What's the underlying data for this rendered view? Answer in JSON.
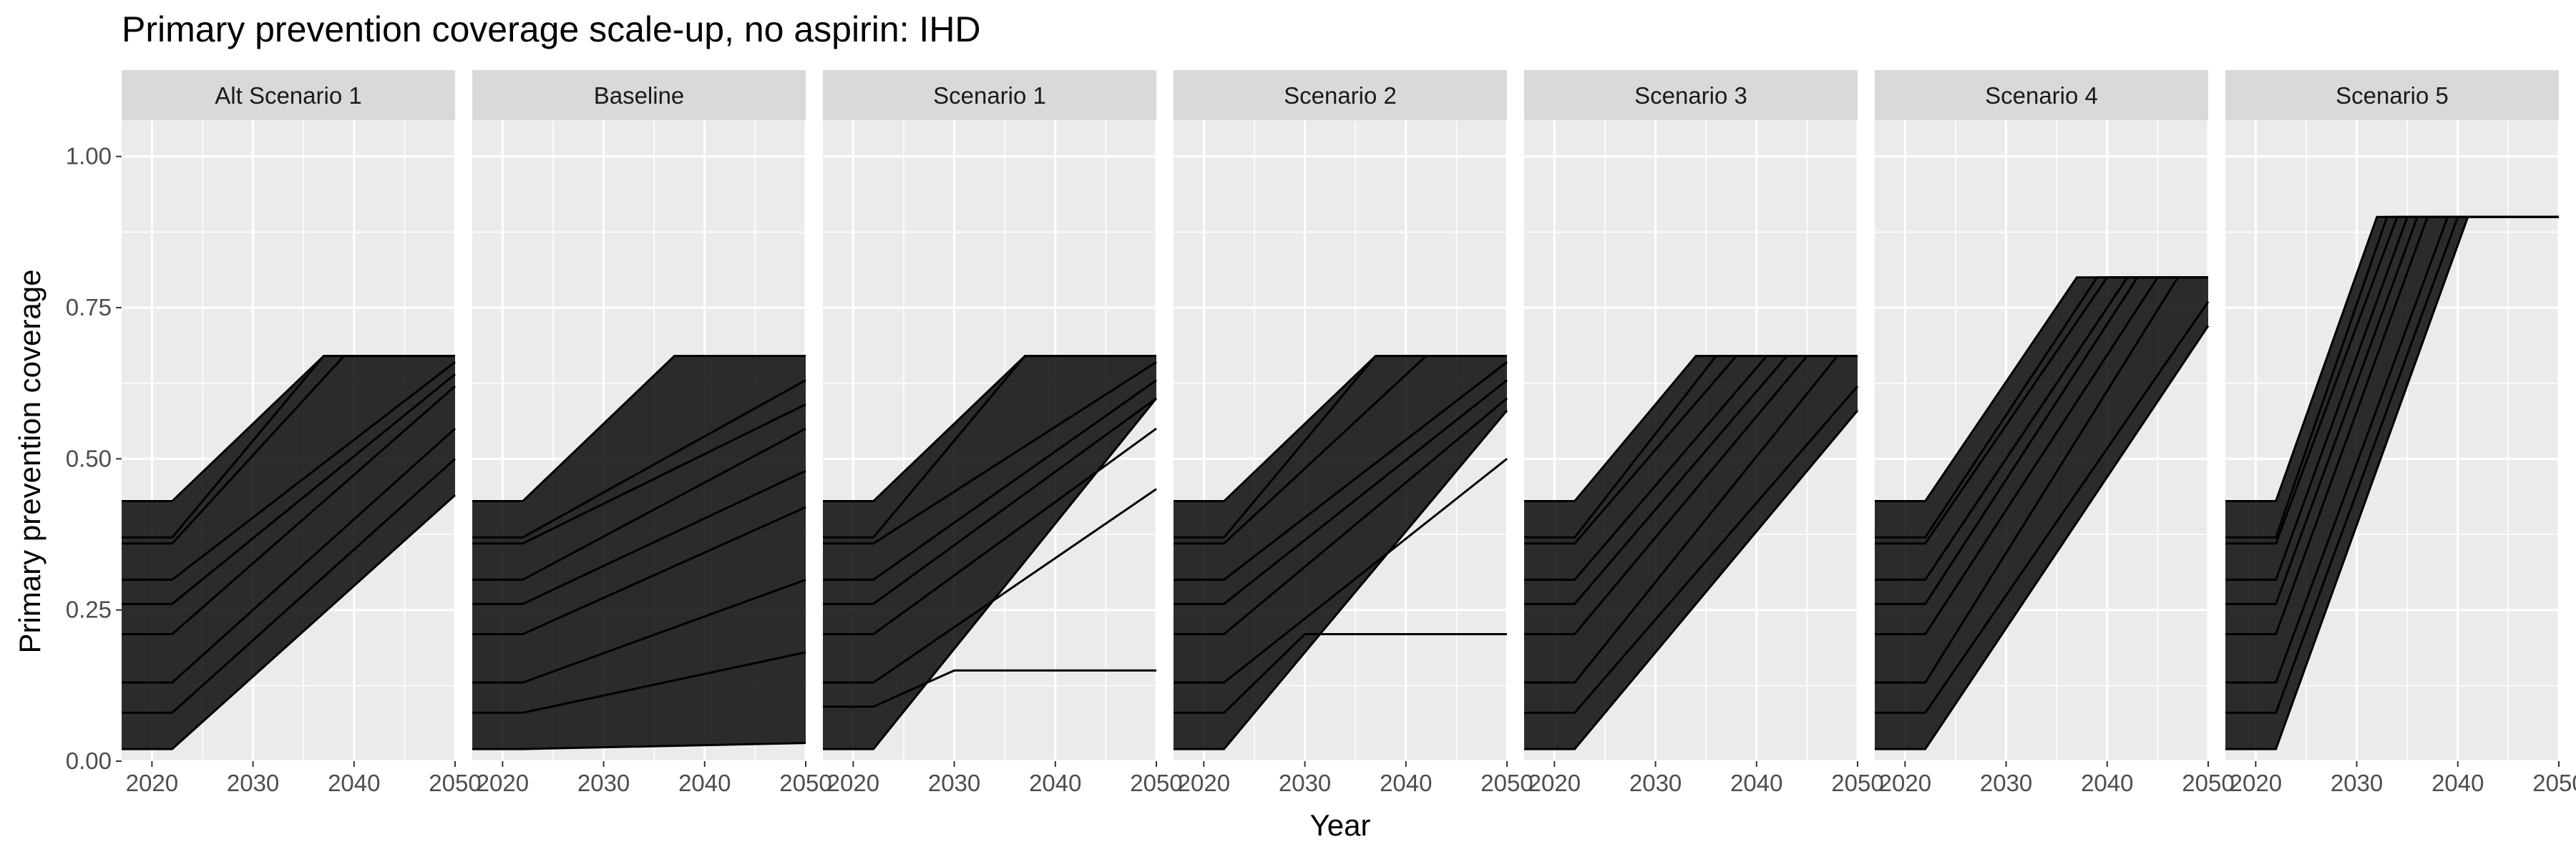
{
  "chart_data": {
    "type": "line",
    "title": "Primary prevention coverage scale-up, no aspirin: IHD",
    "xlabel": "Year",
    "ylabel": "Primary prevention coverage",
    "xlim": [
      2017,
      2050
    ],
    "ylim": [
      0,
      1.06
    ],
    "x_ticks": [
      2020,
      2030,
      2040,
      2050
    ],
    "x_tick_labels": [
      "2020",
      "2030",
      "2040",
      "2050"
    ],
    "y_ticks": [
      0,
      0.25,
      0.5,
      0.75,
      1.0
    ],
    "y_tick_labels": [
      "0.00",
      "0.25",
      "0.50",
      "0.75",
      "1.00"
    ],
    "grid": true,
    "legend": "none",
    "colors": {
      "panel_bg": "#ebebeb",
      "strip_bg": "#d9d9d9",
      "grid": "#ffffff",
      "line": "#000000"
    },
    "panels": [
      {
        "label": "Alt Scenario 1",
        "series": [
          {
            "x": [
              2017,
              2022,
              2037,
              2050
            ],
            "y": [
              0.43,
              0.43,
              0.67,
              0.67
            ]
          },
          {
            "x": [
              2017,
              2022,
              2037,
              2050
            ],
            "y": [
              0.37,
              0.37,
              0.67,
              0.67
            ]
          },
          {
            "x": [
              2017,
              2022,
              2039,
              2050
            ],
            "y": [
              0.36,
              0.36,
              0.67,
              0.67
            ]
          },
          {
            "x": [
              2017,
              2022,
              2050
            ],
            "y": [
              0.3,
              0.3,
              0.66
            ]
          },
          {
            "x": [
              2017,
              2022,
              2050
            ],
            "y": [
              0.26,
              0.26,
              0.64
            ]
          },
          {
            "x": [
              2017,
              2022,
              2050
            ],
            "y": [
              0.21,
              0.21,
              0.62
            ]
          },
          {
            "x": [
              2017,
              2022,
              2050
            ],
            "y": [
              0.13,
              0.13,
              0.55
            ]
          },
          {
            "x": [
              2017,
              2022,
              2050
            ],
            "y": [
              0.08,
              0.08,
              0.5
            ]
          },
          {
            "x": [
              2017,
              2022,
              2050
            ],
            "y": [
              0.02,
              0.02,
              0.44
            ]
          }
        ]
      },
      {
        "label": "Baseline",
        "series": [
          {
            "x": [
              2017,
              2022,
              2037,
              2050
            ],
            "y": [
              0.43,
              0.43,
              0.67,
              0.67
            ]
          },
          {
            "x": [
              2017,
              2022,
              2050
            ],
            "y": [
              0.37,
              0.37,
              0.63
            ]
          },
          {
            "x": [
              2017,
              2022,
              2050
            ],
            "y": [
              0.36,
              0.36,
              0.59
            ]
          },
          {
            "x": [
              2017,
              2022,
              2050
            ],
            "y": [
              0.3,
              0.3,
              0.55
            ]
          },
          {
            "x": [
              2017,
              2022,
              2050
            ],
            "y": [
              0.26,
              0.26,
              0.48
            ]
          },
          {
            "x": [
              2017,
              2022,
              2050
            ],
            "y": [
              0.21,
              0.21,
              0.42
            ]
          },
          {
            "x": [
              2017,
              2022,
              2050
            ],
            "y": [
              0.13,
              0.13,
              0.3
            ]
          },
          {
            "x": [
              2017,
              2022,
              2050
            ],
            "y": [
              0.08,
              0.08,
              0.18
            ]
          },
          {
            "x": [
              2017,
              2022,
              2050
            ],
            "y": [
              0.02,
              0.02,
              0.03
            ]
          }
        ]
      },
      {
        "label": "Scenario 1",
        "series": [
          {
            "x": [
              2017,
              2022,
              2037,
              2050
            ],
            "y": [
              0.43,
              0.43,
              0.67,
              0.67
            ]
          },
          {
            "x": [
              2017,
              2022,
              2037,
              2050
            ],
            "y": [
              0.37,
              0.37,
              0.67,
              0.67
            ]
          },
          {
            "x": [
              2017,
              2022,
              2050
            ],
            "y": [
              0.36,
              0.36,
              0.66
            ]
          },
          {
            "x": [
              2017,
              2022,
              2050
            ],
            "y": [
              0.3,
              0.3,
              0.63
            ]
          },
          {
            "x": [
              2017,
              2022,
              2050
            ],
            "y": [
              0.26,
              0.26,
              0.6
            ]
          },
          {
            "x": [
              2017,
              2022,
              2050
            ],
            "y": [
              0.21,
              0.21,
              0.55
            ]
          },
          {
            "x": [
              2017,
              2022,
              2050
            ],
            "y": [
              0.13,
              0.13,
              0.45
            ]
          },
          {
            "x": [
              2017,
              2022,
              2030,
              2050
            ],
            "y": [
              0.09,
              0.09,
              0.15,
              0.15
            ]
          },
          {
            "x": [
              2017,
              2022,
              2050
            ],
            "y": [
              0.02,
              0.02,
              0.6
            ]
          }
        ]
      },
      {
        "label": "Scenario 2",
        "series": [
          {
            "x": [
              2017,
              2022,
              2037,
              2050
            ],
            "y": [
              0.43,
              0.43,
              0.67,
              0.67
            ]
          },
          {
            "x": [
              2017,
              2022,
              2037,
              2050
            ],
            "y": [
              0.37,
              0.37,
              0.67,
              0.67
            ]
          },
          {
            "x": [
              2017,
              2022,
              2042,
              2050
            ],
            "y": [
              0.36,
              0.36,
              0.67,
              0.67
            ]
          },
          {
            "x": [
              2017,
              2022,
              2050
            ],
            "y": [
              0.3,
              0.3,
              0.66
            ]
          },
          {
            "x": [
              2017,
              2022,
              2050
            ],
            "y": [
              0.26,
              0.26,
              0.63
            ]
          },
          {
            "x": [
              2017,
              2022,
              2050
            ],
            "y": [
              0.21,
              0.21,
              0.6
            ]
          },
          {
            "x": [
              2017,
              2022,
              2050
            ],
            "y": [
              0.13,
              0.13,
              0.5
            ]
          },
          {
            "x": [
              2017,
              2022,
              2030,
              2050
            ],
            "y": [
              0.08,
              0.08,
              0.21,
              0.21
            ]
          },
          {
            "x": [
              2017,
              2022,
              2050
            ],
            "y": [
              0.02,
              0.02,
              0.58
            ]
          }
        ]
      },
      {
        "label": "Scenario 3",
        "series": [
          {
            "x": [
              2017,
              2022,
              2034,
              2050
            ],
            "y": [
              0.43,
              0.43,
              0.67,
              0.67
            ]
          },
          {
            "x": [
              2017,
              2022,
              2036,
              2050
            ],
            "y": [
              0.37,
              0.37,
              0.67,
              0.67
            ]
          },
          {
            "x": [
              2017,
              2022,
              2038,
              2050
            ],
            "y": [
              0.36,
              0.36,
              0.67,
              0.67
            ]
          },
          {
            "x": [
              2017,
              2022,
              2041,
              2050
            ],
            "y": [
              0.3,
              0.3,
              0.67,
              0.67
            ]
          },
          {
            "x": [
              2017,
              2022,
              2043,
              2050
            ],
            "y": [
              0.26,
              0.26,
              0.67,
              0.67
            ]
          },
          {
            "x": [
              2017,
              2022,
              2045,
              2050
            ],
            "y": [
              0.21,
              0.21,
              0.67,
              0.67
            ]
          },
          {
            "x": [
              2017,
              2022,
              2048,
              2050
            ],
            "y": [
              0.13,
              0.13,
              0.67,
              0.67
            ]
          },
          {
            "x": [
              2017,
              2022,
              2050
            ],
            "y": [
              0.08,
              0.08,
              0.62
            ]
          },
          {
            "x": [
              2017,
              2022,
              2050
            ],
            "y": [
              0.02,
              0.02,
              0.58
            ]
          }
        ]
      },
      {
        "label": "Scenario 4",
        "series": [
          {
            "x": [
              2017,
              2022,
              2037,
              2050
            ],
            "y": [
              0.43,
              0.43,
              0.8,
              0.8
            ]
          },
          {
            "x": [
              2017,
              2022,
              2039,
              2050
            ],
            "y": [
              0.37,
              0.37,
              0.8,
              0.8
            ]
          },
          {
            "x": [
              2017,
              2022,
              2040,
              2050
            ],
            "y": [
              0.36,
              0.36,
              0.8,
              0.8
            ]
          },
          {
            "x": [
              2017,
              2022,
              2042,
              2050
            ],
            "y": [
              0.3,
              0.3,
              0.8,
              0.8
            ]
          },
          {
            "x": [
              2017,
              2022,
              2043,
              2050
            ],
            "y": [
              0.26,
              0.26,
              0.8,
              0.8
            ]
          },
          {
            "x": [
              2017,
              2022,
              2045,
              2050
            ],
            "y": [
              0.21,
              0.21,
              0.8,
              0.8
            ]
          },
          {
            "x": [
              2017,
              2022,
              2047,
              2050
            ],
            "y": [
              0.13,
              0.13,
              0.8,
              0.8
            ]
          },
          {
            "x": [
              2017,
              2022,
              2050
            ],
            "y": [
              0.08,
              0.08,
              0.76
            ]
          },
          {
            "x": [
              2017,
              2022,
              2050
            ],
            "y": [
              0.02,
              0.02,
              0.72
            ]
          }
        ]
      },
      {
        "label": "Scenario 5",
        "series": [
          {
            "x": [
              2017,
              2022,
              2032,
              2050
            ],
            "y": [
              0.43,
              0.43,
              0.9,
              0.9
            ]
          },
          {
            "x": [
              2017,
              2022,
              2033,
              2050
            ],
            "y": [
              0.37,
              0.37,
              0.9,
              0.9
            ]
          },
          {
            "x": [
              2017,
              2022,
              2034,
              2050
            ],
            "y": [
              0.36,
              0.36,
              0.9,
              0.9
            ]
          },
          {
            "x": [
              2017,
              2022,
              2035,
              2050
            ],
            "y": [
              0.3,
              0.3,
              0.9,
              0.9
            ]
          },
          {
            "x": [
              2017,
              2022,
              2036,
              2050
            ],
            "y": [
              0.26,
              0.26,
              0.9,
              0.9
            ]
          },
          {
            "x": [
              2017,
              2022,
              2037,
              2050
            ],
            "y": [
              0.21,
              0.21,
              0.9,
              0.9
            ]
          },
          {
            "x": [
              2017,
              2022,
              2039,
              2050
            ],
            "y": [
              0.13,
              0.13,
              0.9,
              0.9
            ]
          },
          {
            "x": [
              2017,
              2022,
              2040,
              2050
            ],
            "y": [
              0.08,
              0.08,
              0.9,
              0.9
            ]
          },
          {
            "x": [
              2017,
              2022,
              2041,
              2050
            ],
            "y": [
              0.02,
              0.02,
              0.9,
              0.9
            ]
          }
        ]
      }
    ],
    "annotation": "Lines between the plotted envelope series form a dense fill of many individual trajectories (not individually readable)."
  }
}
